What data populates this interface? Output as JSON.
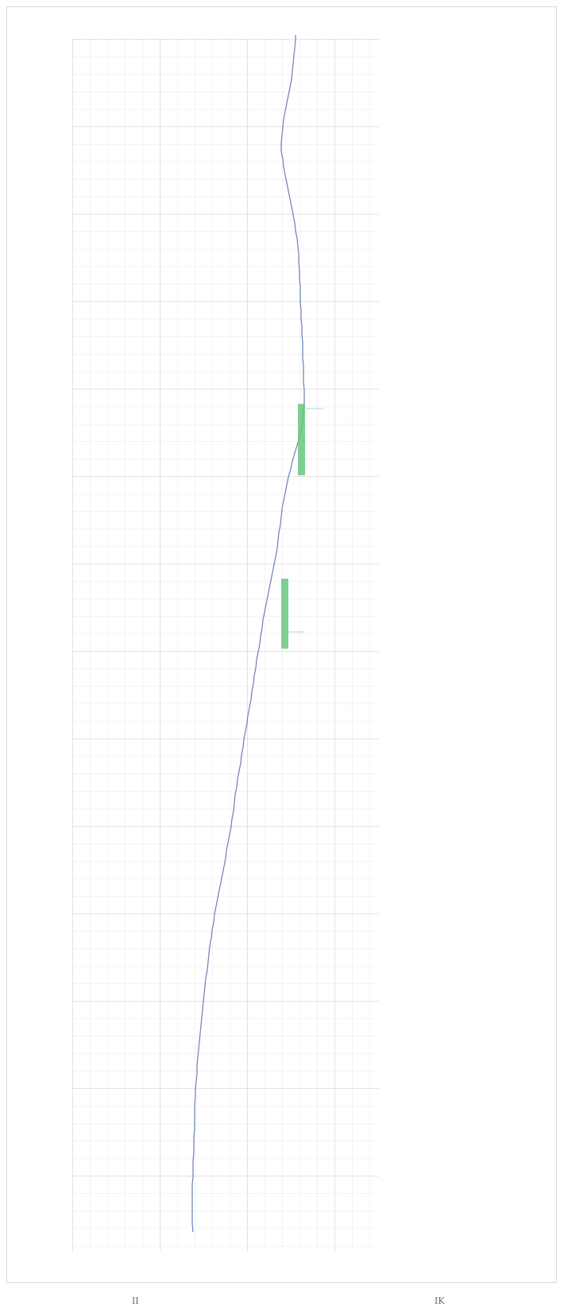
{
  "chart_data": {
    "type": "line",
    "x": [
      4,
      10,
      20,
      30,
      40,
      50,
      60,
      70,
      80,
      90,
      100,
      110,
      120,
      130,
      140,
      150,
      160,
      170,
      180,
      190,
      200,
      210,
      220,
      230,
      240,
      250,
      260,
      270,
      280,
      290,
      300,
      310,
      320,
      330,
      340,
      350,
      360,
      370,
      380,
      390,
      400,
      410,
      420,
      430,
      440,
      450,
      460,
      470,
      480,
      490,
      500,
      510,
      520,
      530,
      540,
      550,
      560,
      570,
      580,
      590,
      600,
      610,
      620,
      630,
      640,
      650,
      660,
      670,
      680,
      690,
      700,
      710,
      720,
      730,
      740,
      750,
      760,
      770,
      780,
      790,
      800,
      810,
      820,
      830,
      840,
      850,
      860,
      870,
      880,
      890,
      900,
      910,
      920,
      930,
      940,
      950,
      960,
      970,
      980,
      990,
      1000,
      1010,
      1020,
      1030,
      1040,
      1050,
      1060,
      1070,
      1080,
      1090,
      1100,
      1110,
      1120,
      1130,
      1140,
      1150,
      1160,
      1170,
      1180,
      1190,
      1200,
      1210,
      1220,
      1230,
      1240,
      1250,
      1260,
      1270,
      1280,
      1290,
      1300,
      1310,
      1320,
      1330,
      1340,
      1350,
      1360,
      1370,
      1380,
      1390,
      1400,
      1410,
      1420,
      1430,
      1440,
      1450,
      1460,
      1470,
      1480,
      1490,
      1500,
      1510
    ],
    "y": [
      372,
      372,
      371,
      370,
      369,
      368,
      367,
      365,
      363,
      361,
      359,
      357,
      356,
      355,
      354,
      354,
      356,
      357,
      359,
      361,
      363,
      365,
      367,
      369,
      371,
      372,
      374,
      375,
      376,
      376,
      377,
      377,
      378,
      378,
      378,
      379,
      379,
      380,
      380,
      381,
      381,
      381,
      382,
      382,
      382,
      383,
      383,
      383,
      382,
      381,
      379,
      377,
      374,
      371,
      368,
      366,
      363,
      361,
      359,
      357,
      355,
      354,
      353,
      351,
      350,
      349,
      347,
      345,
      343,
      341,
      339,
      337,
      335,
      333,
      331,
      330,
      328,
      327,
      325,
      323,
      322,
      320,
      319,
      317,
      316,
      314,
      312,
      311,
      309,
      307,
      306,
      304,
      303,
      301,
      299,
      298,
      296,
      295,
      294,
      292,
      291,
      289,
      287,
      285,
      284,
      282,
      280,
      278,
      276,
      274,
      272,
      270,
      269,
      267,
      266,
      264,
      263,
      262,
      261,
      259,
      258,
      257,
      256,
      255,
      254,
      253,
      252,
      251,
      250,
      249,
      248,
      248,
      247,
      246,
      246,
      245,
      245,
      245,
      245,
      244,
      244,
      244,
      243,
      243,
      243,
      242,
      242,
      242,
      242,
      242,
      242,
      243
    ]
  },
  "texts": {
    "bottom_left_mark": "II",
    "bottom_right_mark": "IK"
  }
}
